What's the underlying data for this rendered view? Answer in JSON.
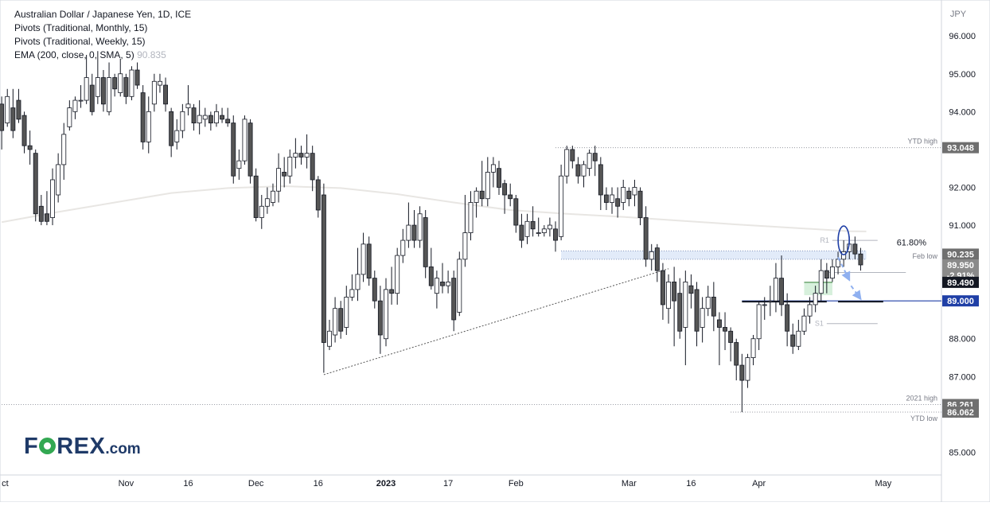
{
  "legend": {
    "title": "Australian Dollar / Japanese Yen, 1D, ICE",
    "pivots_monthly": "Pivots (Traditional, Monthly, 15)",
    "pivots_weekly": "Pivots (Traditional, Weekly, 15)",
    "ema_label": "EMA (200, close, 0, SMA, 5)",
    "ema_value": "90.835"
  },
  "logo": {
    "part1": "F",
    "part2": "REX",
    "part3": ".com"
  },
  "colors": {
    "background": "#ffffff",
    "candle_up": "#ffffff",
    "candle_down": "#555555",
    "candle_border": "#131722",
    "ema_line": "#e8e6e3",
    "projection_arrow": "#8fb0f0",
    "highlight_circle": "#1f3fa6",
    "support_line": "#1f3fa6",
    "price_label_dark": "#131722",
    "price_label_grey": "#6f6f6f",
    "price_label_blue": "#1f3fa6"
  },
  "chart_data": {
    "type": "candlestick",
    "symbol": "AUDJPY",
    "timeframe": "1D",
    "y_axis": {
      "unit": "JPY",
      "range": [
        84.4,
        96.95
      ],
      "ticks": [
        "85.000",
        "86.000",
        "87.000",
        "88.000",
        "89.000",
        "90.000",
        "91.000",
        "92.000",
        "93.000",
        "94.000",
        "95.000",
        "96.000"
      ]
    },
    "x_axis": {
      "ticks": [
        {
          "label": "ct",
          "day": 0
        },
        {
          "label": "Nov",
          "day": 22
        },
        {
          "label": "16",
          "day": 33
        },
        {
          "label": "Dec",
          "day": 45
        },
        {
          "label": "16",
          "day": 56
        },
        {
          "label": "2023",
          "day": 68
        },
        {
          "label": "17",
          "day": 79
        },
        {
          "label": "Feb",
          "day": 91
        },
        {
          "label": "Mar",
          "day": 111
        },
        {
          "label": "16",
          "day": 122
        },
        {
          "label": "Apr",
          "day": 134
        },
        {
          "label": "May",
          "day": 156
        }
      ],
      "day_range": [
        -0.3,
        166.3
      ]
    },
    "candles": [
      [
        94.2,
        93.5,
        93.0,
        94.4
      ],
      [
        93.7,
        94.4,
        93.6,
        94.6
      ],
      [
        94.1,
        93.5,
        93.3,
        94.6
      ],
      [
        94.3,
        93.8,
        93.7,
        94.6
      ],
      [
        93.9,
        93.1,
        92.9,
        94.0
      ],
      [
        93.1,
        93.0,
        92.6,
        93.5
      ],
      [
        92.9,
        91.3,
        91.1,
        93.0
      ],
      [
        91.5,
        91.1,
        91.0,
        91.8
      ],
      [
        91.3,
        91.1,
        91.0,
        91.9
      ],
      [
        91.2,
        92.2,
        91.0,
        92.5
      ],
      [
        91.8,
        92.6,
        91.6,
        92.9
      ],
      [
        92.6,
        93.4,
        92.2,
        93.7
      ],
      [
        93.6,
        94.1,
        93.5,
        94.3
      ],
      [
        94.0,
        94.3,
        93.8,
        94.4
      ],
      [
        94.3,
        94.3,
        94.1,
        94.7
      ],
      [
        94.3,
        94.9,
        94.2,
        95.5
      ],
      [
        94.7,
        94.0,
        93.9,
        95.0
      ],
      [
        94.4,
        94.9,
        94.2,
        95.6
      ],
      [
        94.9,
        94.2,
        94.0,
        95.1
      ],
      [
        94.0,
        94.9,
        93.9,
        95.3
      ],
      [
        94.9,
        94.6,
        94.4,
        95.0
      ],
      [
        94.5,
        95.0,
        94.4,
        95.4
      ],
      [
        94.9,
        94.4,
        94.2,
        95.0
      ],
      [
        94.4,
        95.1,
        94.3,
        95.2
      ],
      [
        95.1,
        94.7,
        94.6,
        95.3
      ],
      [
        94.5,
        93.2,
        93.0,
        94.7
      ],
      [
        93.2,
        94.0,
        92.9,
        94.4
      ],
      [
        94.2,
        94.8,
        94.0,
        95.0
      ],
      [
        94.7,
        94.8,
        94.5,
        95.0
      ],
      [
        94.7,
        94.2,
        94.0,
        94.9
      ],
      [
        94.0,
        93.1,
        92.8,
        94.1
      ],
      [
        93.2,
        93.5,
        93.0,
        93.8
      ],
      [
        93.5,
        94.0,
        93.3,
        94.2
      ],
      [
        94.1,
        94.2,
        93.9,
        94.7
      ],
      [
        94.1,
        93.7,
        93.5,
        94.2
      ],
      [
        93.7,
        93.9,
        93.4,
        94.3
      ],
      [
        93.8,
        93.9,
        93.6,
        94.1
      ],
      [
        93.9,
        93.7,
        93.5,
        94.0
      ],
      [
        93.7,
        94.0,
        93.6,
        94.2
      ],
      [
        93.9,
        93.8,
        93.7,
        94.1
      ],
      [
        93.8,
        93.7,
        93.6,
        94.1
      ],
      [
        93.7,
        92.3,
        92.1,
        93.9
      ],
      [
        92.5,
        92.7,
        92.2,
        93.0
      ],
      [
        92.7,
        93.8,
        92.6,
        93.9
      ],
      [
        93.7,
        92.3,
        92.1,
        93.8
      ],
      [
        92.3,
        91.2,
        91.1,
        92.5
      ],
      [
        91.2,
        91.5,
        90.9,
        91.8
      ],
      [
        91.5,
        91.7,
        91.3,
        92.0
      ],
      [
        91.6,
        91.9,
        91.5,
        92.1
      ],
      [
        91.9,
        92.5,
        91.6,
        92.9
      ],
      [
        92.4,
        92.3,
        92.0,
        92.8
      ],
      [
        92.3,
        92.8,
        92.1,
        93.0
      ],
      [
        92.8,
        92.9,
        92.5,
        93.3
      ],
      [
        92.9,
        92.8,
        92.6,
        93.1
      ],
      [
        92.8,
        92.9,
        92.5,
        93.4
      ],
      [
        92.9,
        92.2,
        91.9,
        93.1
      ],
      [
        92.2,
        91.4,
        91.2,
        92.3
      ],
      [
        91.8,
        87.9,
        87.1,
        92.1
      ],
      [
        87.8,
        88.2,
        87.7,
        88.5
      ],
      [
        88.1,
        88.8,
        87.9,
        89.1
      ],
      [
        88.8,
        88.2,
        88.0,
        89.0
      ],
      [
        88.3,
        89.1,
        88.1,
        89.4
      ],
      [
        89.1,
        89.3,
        89.0,
        89.7
      ],
      [
        89.3,
        89.7,
        89.0,
        90.4
      ],
      [
        89.7,
        90.5,
        89.5,
        90.8
      ],
      [
        90.5,
        89.6,
        89.4,
        90.7
      ],
      [
        89.6,
        89.0,
        88.8,
        89.8
      ],
      [
        89.0,
        88.1,
        87.6,
        89.4
      ],
      [
        88.0,
        89.3,
        87.8,
        89.6
      ],
      [
        89.3,
        89.2,
        88.9,
        89.9
      ],
      [
        89.2,
        90.2,
        88.9,
        90.4
      ],
      [
        90.2,
        90.6,
        90.0,
        90.9
      ],
      [
        90.6,
        91.0,
        90.4,
        91.6
      ],
      [
        91.0,
        90.6,
        90.4,
        91.4
      ],
      [
        90.6,
        91.3,
        90.4,
        91.5
      ],
      [
        91.2,
        89.9,
        89.6,
        91.4
      ],
      [
        89.9,
        89.4,
        89.3,
        90.4
      ],
      [
        89.2,
        89.6,
        88.8,
        89.8
      ],
      [
        89.5,
        89.4,
        89.2,
        90.0
      ],
      [
        89.4,
        89.5,
        89.2,
        89.8
      ],
      [
        89.6,
        88.5,
        88.2,
        89.8
      ],
      [
        88.7,
        90.1,
        88.6,
        90.3
      ],
      [
        90.1,
        90.8,
        89.9,
        91.8
      ],
      [
        90.8,
        91.6,
        90.6,
        91.9
      ],
      [
        91.6,
        91.9,
        91.2,
        92.0
      ],
      [
        91.9,
        91.7,
        91.5,
        92.7
      ],
      [
        91.7,
        92.4,
        91.5,
        92.8
      ],
      [
        92.4,
        92.6,
        92.0,
        92.8
      ],
      [
        92.5,
        92.0,
        91.8,
        92.7
      ],
      [
        92.1,
        91.8,
        91.3,
        92.2
      ],
      [
        91.8,
        91.7,
        91.5,
        92.1
      ],
      [
        91.7,
        91.0,
        90.8,
        91.8
      ],
      [
        91.0,
        90.6,
        90.4,
        91.3
      ],
      [
        90.7,
        91.1,
        90.5,
        91.3
      ],
      [
        91.1,
        90.9,
        90.7,
        91.5
      ],
      [
        90.8,
        90.8,
        90.7,
        91.2
      ],
      [
        90.8,
        90.9,
        90.7,
        91.0
      ],
      [
        90.9,
        91.0,
        90.7,
        91.2
      ],
      [
        90.9,
        90.6,
        90.3,
        91.1
      ],
      [
        90.7,
        92.3,
        90.6,
        92.6
      ],
      [
        92.3,
        93.0,
        92.1,
        93.1
      ],
      [
        93.0,
        92.7,
        92.5,
        93.1
      ],
      [
        92.6,
        92.3,
        92.1,
        92.8
      ],
      [
        92.3,
        92.6,
        92.0,
        92.7
      ],
      [
        92.5,
        92.9,
        92.3,
        93.0
      ],
      [
        92.9,
        92.7,
        92.3,
        93.1
      ],
      [
        92.6,
        91.8,
        91.4,
        92.8
      ],
      [
        91.8,
        91.6,
        91.4,
        92.0
      ],
      [
        91.6,
        91.8,
        91.3,
        92.0
      ],
      [
        91.7,
        91.5,
        91.2,
        92.0
      ],
      [
        91.6,
        92.0,
        91.4,
        92.2
      ],
      [
        91.9,
        91.7,
        91.5,
        92.0
      ],
      [
        91.8,
        92.0,
        91.5,
        92.2
      ],
      [
        91.9,
        91.2,
        91.0,
        92.0
      ],
      [
        91.2,
        90.1,
        89.9,
        91.5
      ],
      [
        90.1,
        90.3,
        89.8,
        90.5
      ],
      [
        90.4,
        89.8,
        89.5,
        90.5
      ],
      [
        89.8,
        88.9,
        88.5,
        90.0
      ],
      [
        88.8,
        89.5,
        88.4,
        89.7
      ],
      [
        89.5,
        89.0,
        87.8,
        89.9
      ],
      [
        89.2,
        88.2,
        88.0,
        89.6
      ],
      [
        88.3,
        89.5,
        87.3,
        89.8
      ],
      [
        89.4,
        89.2,
        88.8,
        89.7
      ],
      [
        89.3,
        88.2,
        87.8,
        89.5
      ],
      [
        88.3,
        88.8,
        87.9,
        89.1
      ],
      [
        88.8,
        89.1,
        88.6,
        89.4
      ],
      [
        89.1,
        88.6,
        88.2,
        89.5
      ],
      [
        88.5,
        88.3,
        87.3,
        88.7
      ],
      [
        88.3,
        88.2,
        87.7,
        88.7
      ],
      [
        88.2,
        87.9,
        87.4,
        88.3
      ],
      [
        87.9,
        87.3,
        86.9,
        88.0
      ],
      [
        87.3,
        86.9,
        86.06,
        87.6
      ],
      [
        86.9,
        87.5,
        86.7,
        87.6
      ],
      [
        87.5,
        88.0,
        87.3,
        88.1
      ],
      [
        88.0,
        88.9,
        87.7,
        89.0
      ],
      [
        88.9,
        88.9,
        88.5,
        89.1
      ],
      [
        89.0,
        89.0,
        88.6,
        89.4
      ],
      [
        89.0,
        89.6,
        88.7,
        90.0
      ],
      [
        89.6,
        88.9,
        88.6,
        90.2
      ],
      [
        88.9,
        88.2,
        87.8,
        89.2
      ],
      [
        88.1,
        87.8,
        87.6,
        88.4
      ],
      [
        87.8,
        88.2,
        87.7,
        88.5
      ],
      [
        88.2,
        88.6,
        88.1,
        88.8
      ],
      [
        88.6,
        88.9,
        88.4,
        89.1
      ],
      [
        88.9,
        89.2,
        88.7,
        89.4
      ],
      [
        89.2,
        89.8,
        89.0,
        90.1
      ],
      [
        89.8,
        89.6,
        89.2,
        90.0
      ],
      [
        89.6,
        89.9,
        89.5,
        90.1
      ],
      [
        89.9,
        90.1,
        89.7,
        90.3
      ],
      [
        90.1,
        90.3,
        89.9,
        90.6
      ],
      [
        90.3,
        90.5,
        90.1,
        90.7
      ],
      [
        90.5,
        90.24,
        90.1,
        90.7
      ],
      [
        90.24,
        89.95,
        89.8,
        90.4
      ]
    ],
    "ema200": [
      [
        0,
        91.08
      ],
      [
        10,
        91.35
      ],
      [
        20,
        91.6
      ],
      [
        30,
        91.85
      ],
      [
        40,
        91.98
      ],
      [
        50,
        92.03
      ],
      [
        60,
        91.98
      ],
      [
        70,
        91.82
      ],
      [
        80,
        91.6
      ],
      [
        90,
        91.4
      ],
      [
        100,
        91.3
      ],
      [
        110,
        91.22
      ],
      [
        120,
        91.12
      ],
      [
        130,
        91.02
      ],
      [
        140,
        90.93
      ],
      [
        150,
        90.84
      ],
      [
        153,
        90.835
      ]
    ],
    "trendline": {
      "from": [
        57,
        87.05
      ],
      "to": [
        118,
        89.85
      ]
    },
    "annotations": [
      {
        "label": "YTD high",
        "value": "93.048",
        "price": 93.048,
        "from_day": 98
      },
      {
        "label": "2021 high",
        "value": "86.261",
        "price": 86.261,
        "from_day": 0
      },
      {
        "label": "YTD low",
        "value": "86.062",
        "price": 86.062,
        "from_day": 129
      },
      {
        "label": "Feb low",
        "price": 90.2
      },
      {
        "label": "61.80%",
        "price": 90.4
      },
      {
        "label": "R1",
        "price": 90.6
      },
      {
        "label": "S1",
        "price": 88.4
      }
    ],
    "price_labels": [
      {
        "value": "90.235",
        "price": 90.235,
        "style": "grey"
      },
      {
        "value": "89.950",
        "price": 89.95,
        "style": "grey"
      },
      {
        "value": "-2.91%",
        "price": 89.68,
        "style": "grey-sub"
      },
      {
        "value": "89.490",
        "price": 89.49,
        "style": "dark"
      },
      {
        "value": "89.000",
        "price": 89.0,
        "style": "blue"
      }
    ],
    "support_line": {
      "price": 89.0,
      "from_day": 131
    },
    "green_zone": {
      "from_day": 142,
      "to_day": 147,
      "top": 89.49,
      "bottom": 89.15
    },
    "projection": [
      [
        148,
        90.15
      ],
      [
        150,
        89.55
      ],
      [
        150.3,
        89.4
      ],
      [
        152,
        89.05
      ]
    ],
    "highlight": {
      "day": 149,
      "price": 90.6
    }
  }
}
